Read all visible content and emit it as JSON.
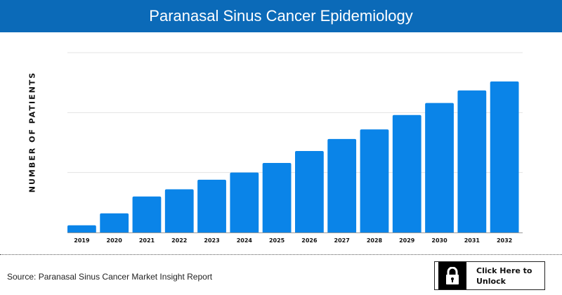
{
  "header": {
    "title": "Paranasal Sinus Cancer Epidemiology"
  },
  "footer": {
    "source": "Source: Paranasal Sinus Cancer Market Insight Report",
    "unlock_label": "Click Here to Unlock",
    "unlock_icon": "lock-icon"
  },
  "colors": {
    "header": "#0b6ab8",
    "bar": "#0a84e8"
  },
  "chart_data": {
    "type": "bar",
    "title": "",
    "xlabel": "",
    "ylabel": "NUMBER OF PATIENTS",
    "categories": [
      "2019",
      "2020",
      "2021",
      "2022",
      "2023",
      "2024",
      "2025",
      "2026",
      "2027",
      "2028",
      "2029",
      "2030",
      "2031",
      "2032"
    ],
    "values": [
      0.12,
      0.32,
      0.6,
      0.72,
      0.88,
      1.0,
      1.16,
      1.36,
      1.56,
      1.72,
      1.96,
      2.16,
      2.37,
      2.52
    ],
    "ylim": [
      0,
      3
    ],
    "grid": true,
    "y_tick_labels_shown": false
  }
}
